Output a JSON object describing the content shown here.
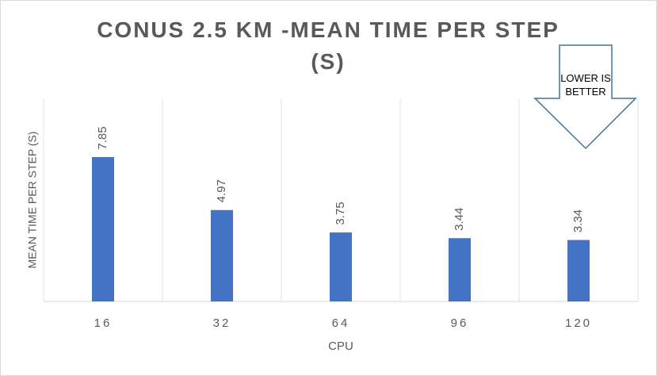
{
  "chart_data": {
    "type": "bar",
    "title": "CONUS 2.5 KM -MEAN TIME PER STEP (S)",
    "x_label": "CPU",
    "y_label": "MEAN TIME PER STEP (S)",
    "annotation": "LOWER IS BETTER",
    "categories": [
      "16",
      "32",
      "64",
      "96",
      "120"
    ],
    "values": [
      7.85,
      4.97,
      3.75,
      3.44,
      3.34
    ],
    "color": "#4472c4",
    "ylim": [
      0,
      11
    ],
    "grid": true
  }
}
